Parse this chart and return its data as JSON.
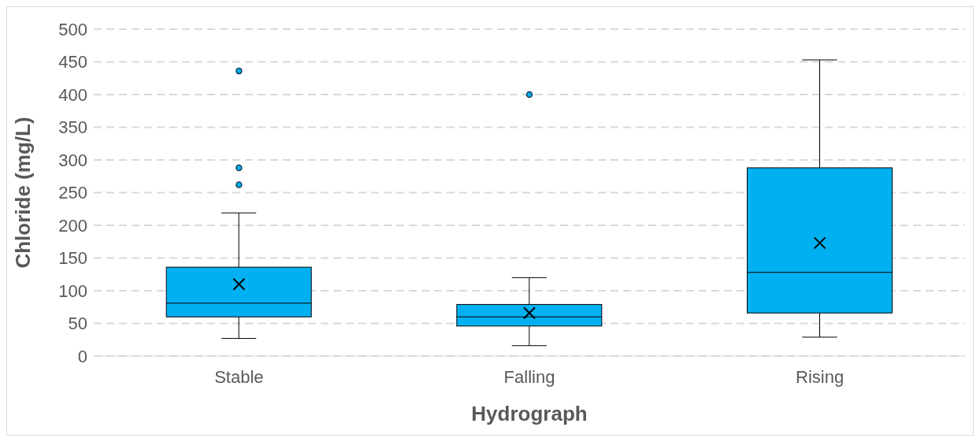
{
  "chart_data": {
    "type": "box",
    "xlabel": "Hydrograph",
    "ylabel": "Chloride (mg/L)",
    "categories": [
      "Stable",
      "Falling",
      "Rising"
    ],
    "color": "#00b0f0",
    "boxes": [
      {
        "low": 27,
        "q1": 60,
        "median": 81,
        "q3": 136,
        "high": 219,
        "mean": 110,
        "outliers": [
          436,
          288,
          262
        ]
      },
      {
        "low": 16,
        "q1": 46,
        "median": 60,
        "q3": 79,
        "high": 120,
        "mean": 66,
        "outliers": [
          400
        ]
      },
      {
        "low": 29,
        "q1": 66,
        "median": 128,
        "q3": 288,
        "high": 453,
        "mean": 173
      }
    ],
    "ylim": [
      0,
      500
    ],
    "yticks": [
      0,
      50,
      100,
      150,
      200,
      250,
      300,
      350,
      400,
      450,
      500
    ],
    "grid": "y",
    "legend": false
  }
}
